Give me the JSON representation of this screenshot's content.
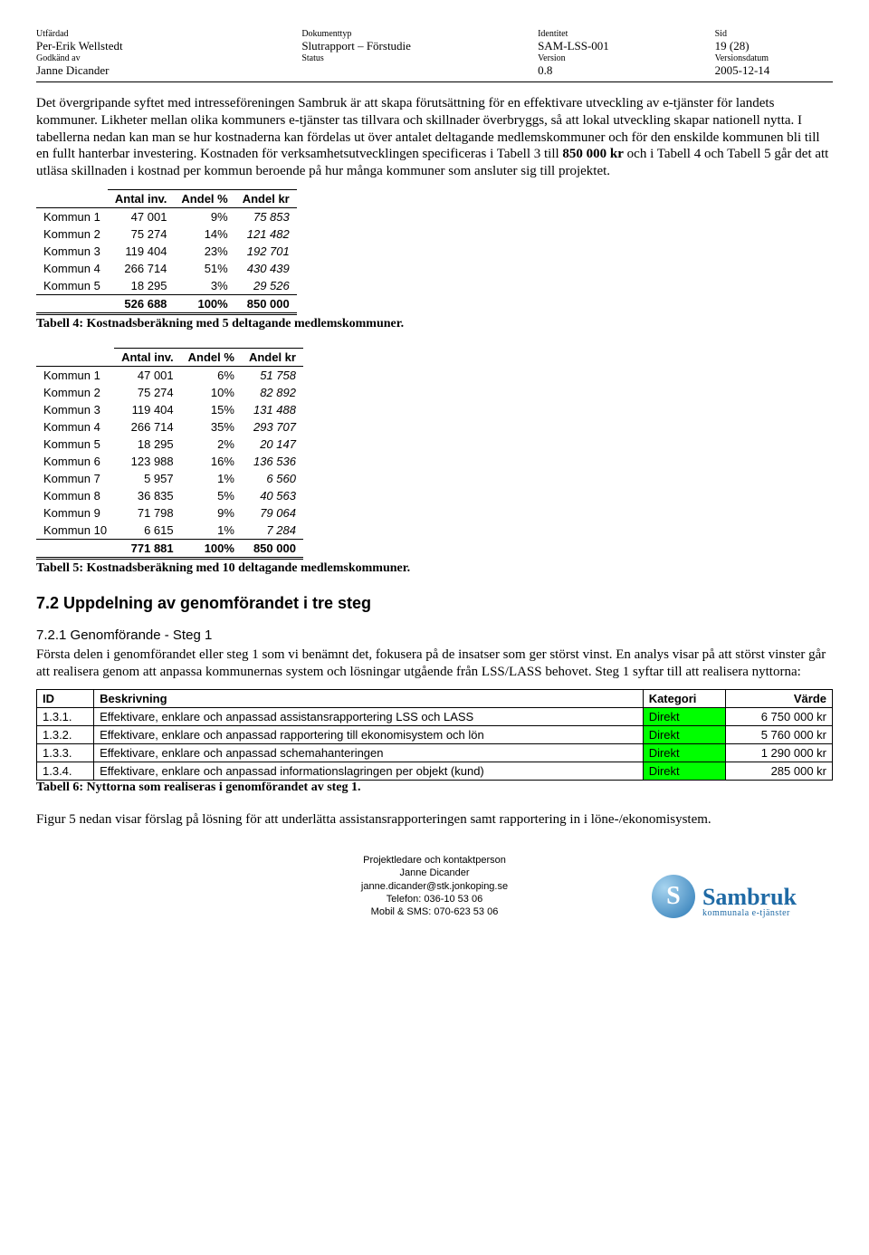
{
  "header": {
    "labels": [
      "Utfärdad",
      "Dokumenttyp",
      "Identitet",
      "Sid",
      "Godkänd av",
      "Status",
      "Version",
      "Versionsdatum"
    ],
    "row1": [
      "Per-Erik Wellstedt",
      "Slutrapport – Förstudie",
      "SAM-LSS-001",
      "19 (28)"
    ],
    "row2": [
      "Janne Dicander",
      "",
      "0.8",
      "2005-12-14"
    ]
  },
  "para1_a": "Det övergripande syftet med intresseföreningen Sambruk är att skapa förutsättning för en effektivare utveckling av e-tjänster för landets kommuner. Likheter mellan olika kommuners e-tjänster tas tillvara och skillnader överbryggs, så att lokal utveckling skapar nationell nytta. I tabellerna nedan kan man se hur kostnaderna kan fördelas ut över antalet deltagande medlemskommuner och för den enskilde kommunen bli till en fullt hanterbar investering. Kostnaden för verksamhetsutvecklingen specificeras i Tabell 3 till ",
  "para1_b1": "850 000 kr",
  "para1_c": " och i Tabell 4 och Tabell 5 går det att utläsa skillnaden i kostnad per kommun beroende på hur många kommuner som ansluter sig till projektet.",
  "table4": {
    "headers": [
      "",
      "Antal inv.",
      "Andel %",
      "Andel kr"
    ],
    "rows": [
      [
        "Kommun 1",
        "47 001",
        "9%",
        "75 853"
      ],
      [
        "Kommun 2",
        "75 274",
        "14%",
        "121 482"
      ],
      [
        "Kommun 3",
        "119 404",
        "23%",
        "192 701"
      ],
      [
        "Kommun 4",
        "266 714",
        "51%",
        "430 439"
      ],
      [
        "Kommun 5",
        "18 295",
        "3%",
        "29 526"
      ]
    ],
    "sum": [
      "",
      "526 688",
      "100%",
      "850 000"
    ],
    "caption": "Tabell 4: Kostnadsberäkning med 5 deltagande medlemskommuner."
  },
  "table5": {
    "headers": [
      "",
      "Antal inv.",
      "Andel %",
      "Andel kr"
    ],
    "rows": [
      [
        "Kommun 1",
        "47 001",
        "6%",
        "51 758"
      ],
      [
        "Kommun 2",
        "75 274",
        "10%",
        "82 892"
      ],
      [
        "Kommun 3",
        "119 404",
        "15%",
        "131 488"
      ],
      [
        "Kommun 4",
        "266 714",
        "35%",
        "293 707"
      ],
      [
        "Kommun 5",
        "18 295",
        "2%",
        "20 147"
      ],
      [
        "Kommun 6",
        "123 988",
        "16%",
        "136 536"
      ],
      [
        "Kommun 7",
        "5 957",
        "1%",
        "6 560"
      ],
      [
        "Kommun 8",
        "36 835",
        "5%",
        "40 563"
      ],
      [
        "Kommun 9",
        "71 798",
        "9%",
        "79 064"
      ],
      [
        "Kommun 10",
        "6 615",
        "1%",
        "7 284"
      ]
    ],
    "sum": [
      "",
      "771 881",
      "100%",
      "850 000"
    ],
    "caption": "Tabell 5: Kostnadsberäkning med 10 deltagande medlemskommuner."
  },
  "section72": "7.2   Uppdelning av genomförandet i tre steg",
  "section721": "7.2.1   Genomförande - Steg 1",
  "para2": "Första delen i genomförandet eller steg 1 som vi benämnt det, fokusera på de insatser som ger störst vinst. En analys visar på att störst vinster går att realisera genom att anpassa kommunernas system och lösningar utgående från LSS/LASS behovet. Steg 1 syftar till att realisera nyttorna:",
  "table6": {
    "headers": [
      "ID",
      "Beskrivning",
      "Kategori",
      "Värde"
    ],
    "rows": [
      [
        "1.3.1.",
        "Effektivare, enklare och anpassad assistansrapportering LSS och LASS",
        "Direkt",
        "6 750 000 kr"
      ],
      [
        "1.3.2.",
        "Effektivare, enklare och anpassad rapportering till ekonomisystem och lön",
        "Direkt",
        "5 760 000 kr"
      ],
      [
        "1.3.3.",
        "Effektivare, enklare och anpassad schemahanteringen",
        "Direkt",
        "1 290 000 kr"
      ],
      [
        "1.3.4.",
        "Effektivare, enklare och anpassad informationslagringen per objekt (kund)",
        "Direkt",
        "285 000 kr"
      ]
    ],
    "caption": "Tabell 6: Nyttorna som realiseras i genomförandet av steg 1."
  },
  "para3": "Figur 5 nedan visar förslag på lösning för att underlätta assistansrapporteringen samt rapportering in i löne-/ekonomisystem.",
  "footer": {
    "lines": [
      "Projektledare och kontaktperson",
      "Janne Dicander",
      "janne.dicander@stk.jonkoping.se",
      "Telefon: 036-10 53 06",
      "Mobil & SMS: 070-623 53 06"
    ],
    "logo_main": "Sambruk",
    "logo_sub": "kommunala e-tjänster"
  }
}
